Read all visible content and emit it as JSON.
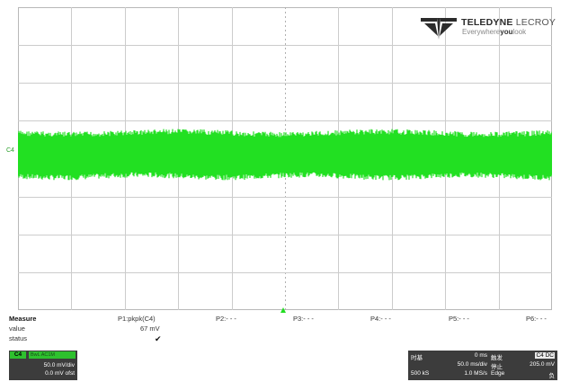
{
  "brand": {
    "name_bold": "TELEDYNE",
    "name_light": "LECROY",
    "tag_pre": "Everywhere",
    "tag_bold": "you",
    "tag_post": "look"
  },
  "scope": {
    "channel_marker": "C4",
    "trace_color": "#22e022",
    "grid_color": "#cccccc"
  },
  "measure": {
    "title": "Measure",
    "row_value": "value",
    "row_status": "status",
    "params": [
      {
        "name": "P1:pkpk(C4)",
        "value": "67 mV",
        "status": "✔"
      },
      {
        "name": "P2:- - -",
        "value": "",
        "status": ""
      },
      {
        "name": "P3:- - -",
        "value": "",
        "status": ""
      },
      {
        "name": "P4:- - -",
        "value": "",
        "status": ""
      },
      {
        "name": "P5:- - -",
        "value": "",
        "status": ""
      },
      {
        "name": "P6:- - -",
        "value": "",
        "status": ""
      }
    ]
  },
  "channel": {
    "label": "C4",
    "coupling": "BwL  AC1M",
    "scale": "50.0 mV/div",
    "offset": "0.0 mV ofst"
  },
  "timebase": {
    "time_label": "时基",
    "time_value": "0 ms",
    "trigger_label": "触发",
    "trigger_tag": "C4 DC",
    "div": "50.0 ms/div",
    "stop_label": "停止",
    "trigger_level": "205.0 mV",
    "samples": "500 kS",
    "rate": "1.0 MS/s",
    "edge": "Edge",
    "slope": "负"
  }
}
